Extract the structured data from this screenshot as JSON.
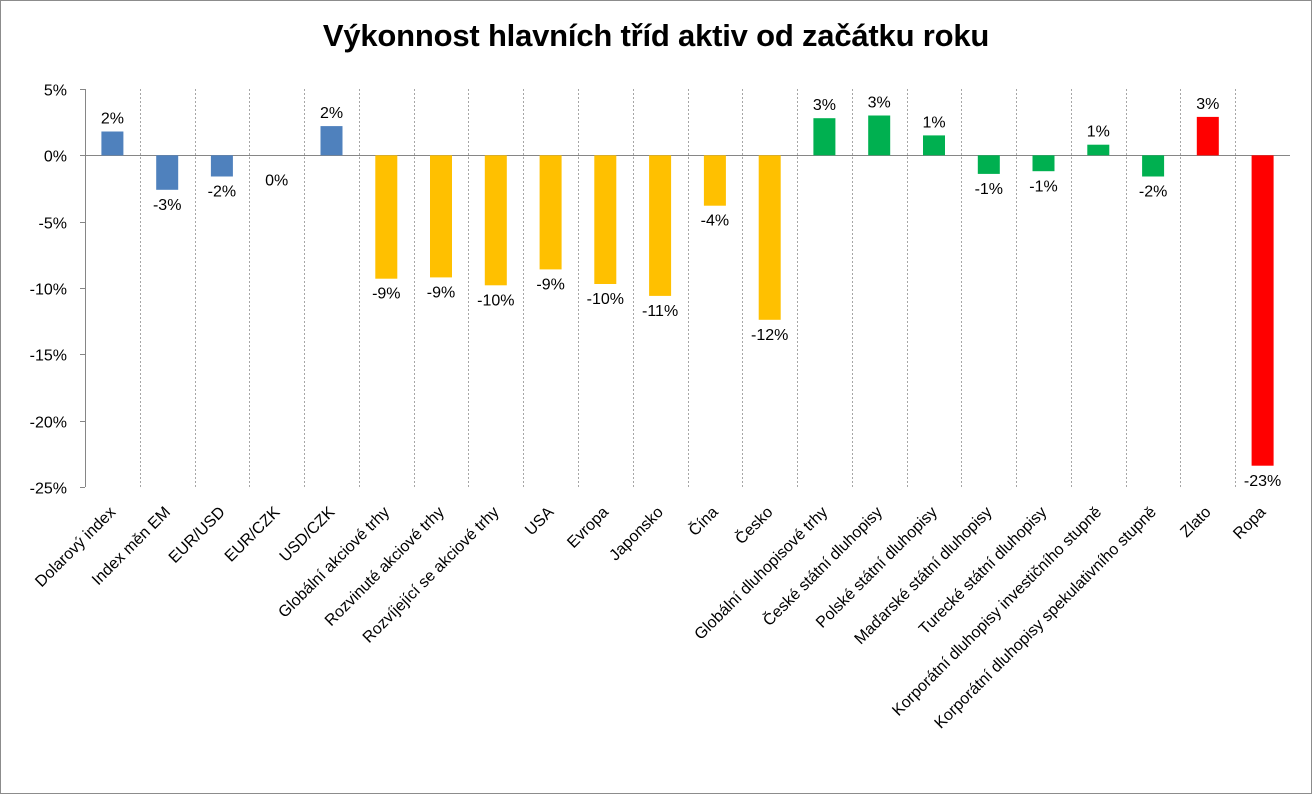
{
  "chart_data": {
    "type": "bar",
    "title": "Výkonnost hlavních tříd aktiv od začátku roku",
    "xlabel": "",
    "ylabel": "",
    "ylim": [
      -25,
      5
    ],
    "y_ticks": [
      5,
      0,
      -5,
      -10,
      -15,
      -20,
      -25
    ],
    "y_tick_labels": [
      "5%",
      "0%",
      "-5%",
      "-10%",
      "-15%",
      "-20%",
      "-25%"
    ],
    "grid": "vertical-dashed",
    "legend": "none",
    "categories": [
      "Dolarový index",
      "Index měn EM",
      "EUR/USD",
      "EUR/CZK",
      "USD/CZK",
      "Globální akciové trhy",
      "Rozvinuté akciové trhy",
      "Rozvíjející se akciové trhy",
      "USA",
      "Evropa",
      "Japonsko",
      "Čína",
      "Česko",
      "Globální dluhopisové trhy",
      "České státní dluhopisy",
      "Polské státní dluhopisy",
      "Maďarské státní dluhopisy",
      "Turecké státní dluhopisy",
      "Korporátní dluhopisy investičního stupně",
      "Korporátní dluhopisy spekulativního stupně",
      "Zlato",
      "Ropa"
    ],
    "values": [
      1.8,
      -2.6,
      -1.6,
      0.0,
      2.2,
      -9.3,
      -9.2,
      -9.8,
      -8.6,
      -9.7,
      -10.6,
      -3.8,
      -12.4,
      2.8,
      3.0,
      1.5,
      -1.4,
      -1.2,
      0.8,
      -1.6,
      2.9,
      -23.4
    ],
    "data_labels": [
      "2%",
      "-3%",
      "-2%",
      "0%",
      "2%",
      "-9%",
      "-9%",
      "-10%",
      "-9%",
      "-10%",
      "-11%",
      "-4%",
      "-12%",
      "3%",
      "3%",
      "1%",
      "-1%",
      "-1%",
      "1%",
      "-2%",
      "3%",
      "-23%"
    ],
    "colors": [
      "#4f81bd",
      "#4f81bd",
      "#4f81bd",
      "#4f81bd",
      "#4f81bd",
      "#ffc000",
      "#ffc000",
      "#ffc000",
      "#ffc000",
      "#ffc000",
      "#ffc000",
      "#ffc000",
      "#ffc000",
      "#00b050",
      "#00b050",
      "#00b050",
      "#00b050",
      "#00b050",
      "#00b050",
      "#00b050",
      "#ff0000",
      "#ff0000"
    ]
  }
}
